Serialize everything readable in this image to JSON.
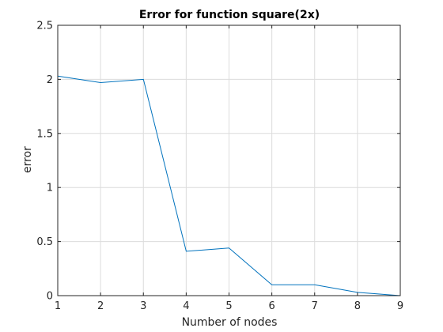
{
  "chart_data": {
    "type": "line",
    "title": "Error for function square(2x)",
    "xlabel": "Number of nodes",
    "ylabel": "error",
    "xlim": [
      1,
      9
    ],
    "ylim": [
      0,
      2.5
    ],
    "xticks": [
      1,
      2,
      3,
      4,
      5,
      6,
      7,
      8,
      9
    ],
    "yticks": [
      0,
      0.5,
      1,
      1.5,
      2,
      2.5
    ],
    "grid": true,
    "series": [
      {
        "color": "#0072bd",
        "x": [
          1,
          2,
          3,
          4,
          5,
          6,
          7,
          8,
          9
        ],
        "y": [
          2.03,
          1.97,
          2.0,
          0.41,
          0.44,
          0.1,
          0.1,
          0.03,
          0.0
        ]
      }
    ]
  }
}
